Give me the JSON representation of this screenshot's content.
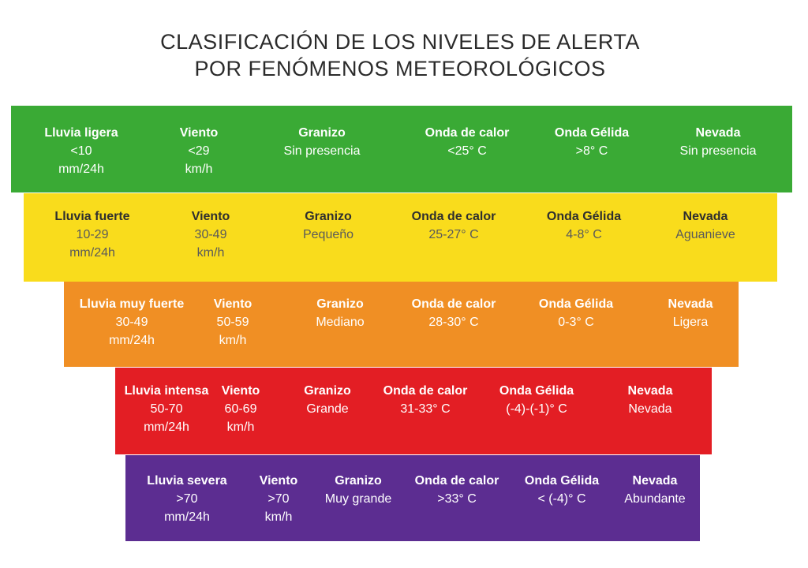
{
  "title": {
    "line1": "CLASIFICACIÓN DE LOS NIVELES DE ALERTA",
    "line2": "POR FENÓMENOS METEOROLÓGICOS"
  },
  "colors": {
    "green": "#3aaa35",
    "yellow": "#f9dc1c",
    "orange": "#f08f24",
    "red": "#e31e24",
    "purple": "#5c2d91"
  },
  "levels": [
    {
      "color": "green",
      "cells": [
        {
          "label": "Lluvia ligera",
          "value": "<10",
          "unit": "mm/24h"
        },
        {
          "label": "Viento",
          "value": "<29",
          "unit": "km/h"
        },
        {
          "label": "Granizo",
          "value": "Sin presencia"
        },
        {
          "label": "Onda de calor",
          "value": "<25° C"
        },
        {
          "label": "Onda Gélida",
          "value": ">8° C"
        },
        {
          "label": "Nevada",
          "value": "Sin presencia"
        }
      ]
    },
    {
      "color": "yellow",
      "cells": [
        {
          "label": "Lluvia fuerte",
          "value": "10-29",
          "unit": "mm/24h"
        },
        {
          "label": "Viento",
          "value": "30-49",
          "unit": "km/h"
        },
        {
          "label": "Granizo",
          "value": "Pequeño"
        },
        {
          "label": "Onda de calor",
          "value": "25-27° C"
        },
        {
          "label": "Onda Gélida",
          "value": "4-8° C"
        },
        {
          "label": "Nevada",
          "value": "Aguanieve"
        }
      ]
    },
    {
      "color": "orange",
      "cells": [
        {
          "label": "Lluvia muy fuerte",
          "value": "30-49",
          "unit": "mm/24h"
        },
        {
          "label": "Viento",
          "value": "50-59",
          "unit": "km/h"
        },
        {
          "label": "Granizo",
          "value": "Mediano"
        },
        {
          "label": "Onda de calor",
          "value": "28-30° C"
        },
        {
          "label": "Onda Gélida",
          "value": "0-3° C"
        },
        {
          "label": "Nevada",
          "value": "Ligera"
        }
      ]
    },
    {
      "color": "red",
      "cells": [
        {
          "label": "Lluvia intensa",
          "value": "50-70",
          "unit": "mm/24h"
        },
        {
          "label": "Viento",
          "value": "60-69",
          "unit": "km/h"
        },
        {
          "label": "Granizo",
          "value": "Grande"
        },
        {
          "label": "Onda de calor",
          "value": "31-33° C"
        },
        {
          "label": "Onda Gélida",
          "value": "(-4)-(-1)° C"
        },
        {
          "label": "Nevada",
          "value": "Nevada"
        }
      ]
    },
    {
      "color": "purple",
      "cells": [
        {
          "label": "Lluvia severa",
          "value": ">70",
          "unit": "mm/24h"
        },
        {
          "label": "Viento",
          "value": ">70",
          "unit": "km/h"
        },
        {
          "label": "Granizo",
          "value": "Muy grande"
        },
        {
          "label": "Onda de calor",
          "value": ">33° C"
        },
        {
          "label": "Onda Gélida",
          "value": "< (-4)° C"
        },
        {
          "label": "Nevada",
          "value": "Abundante"
        }
      ]
    }
  ]
}
